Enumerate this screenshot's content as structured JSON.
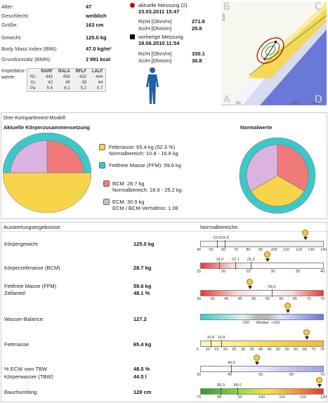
{
  "patient": {
    "alter_label": "Alter:",
    "alter": "47",
    "geschlecht_label": "Geschlecht:",
    "geschlecht": "weiblich",
    "groesse_label": "Größe:",
    "groesse": "163 cm",
    "gewicht_label": "Gewicht:",
    "gewicht": "125.0 kg",
    "bmi_label": "Body Mass Index (BMI):",
    "bmi": "47.0 kg/m²",
    "bmr_label": "Grundumsatz (BMR):",
    "bmr": "1'491 kcal",
    "impedanz_label": "Impedanz-\nwerte:"
  },
  "impedance": {
    "columns": [
      "",
      "RARF",
      "RALA",
      "RFLF",
      "LALF"
    ],
    "rows": [
      [
        "Rz",
        "443",
        "456",
        "432",
        "444"
      ],
      [
        "Xc",
        "42",
        "49",
        "39",
        "44"
      ],
      [
        "Pa",
        "5.4",
        "6.1",
        "5.2",
        "5.7"
      ]
    ]
  },
  "measurements": {
    "current_title": "aktuelle Messung (2)",
    "current_date": "23.03.2011 15:47",
    "current_rz_label": "Rz/H [Ohm/m]",
    "current_rz": "271.8",
    "current_xc_label": "Xc/H [Ohm/m]",
    "current_xc": "25.8",
    "prev_title": "vorherige Messung",
    "prev_date": "18.06.2010 11:54",
    "prev_rz_label": "Rz/H [Ohm/m]",
    "prev_rz": "330.1",
    "prev_xc_label": "Xc/H [Ohm/m]",
    "prev_xc": "36.8",
    "current_color": "#cc0000",
    "prev_color": "#000000"
  },
  "rxc_graph": {
    "quadrants": [
      "B",
      "C",
      "A",
      "D"
    ],
    "ylabel": "Xc/H",
    "xlabel": "Rz/H",
    "x_min_label": "100",
    "x_max_label": "1000"
  },
  "compartment": {
    "section_title": "Drei-Kompartiment-Modell:",
    "current_title": "Aktuelle Körperzusammensetzung",
    "normal_title": "Normalwerte",
    "fett_line1": "Fettmasse: 65.4 kg (52.3 %)",
    "fett_line2": "Normalbereich: 10.8 - 16.8 kg",
    "ffm_line": "Fettfreie Masse (FFM): 59.6 kg",
    "bcm_line1": "BCM: 28.7 kg",
    "bcm_line2": "Normalbereich: 18.9 - 25.2 kg",
    "ecm_line1": "ECM: 30.9 kg",
    "ecm_line2": "ECM / BCM-Verhältnis: 1.08",
    "colors": {
      "fett": "#f7d54a",
      "ffm": "#3cc8c8",
      "bcm": "#f07a7a",
      "ecm": "#dcb2e0"
    }
  },
  "results": {
    "title": "Auswertungsergebnisse:",
    "normal_title": "Normalbereiche:",
    "rows": {
      "koerpergewicht": {
        "label": "Körpergewicht",
        "value": "125.0 kg"
      },
      "bcm": {
        "label": "Körperzellmasse (BCM)",
        "value": "28.7 kg"
      },
      "ffm": {
        "label": "Fettfreie Masse (FFM)",
        "value": "59.6 kg"
      },
      "zellanteil": {
        "label": "Zellanteil",
        "value": "48.1 %"
      },
      "wasser": {
        "label": "Wasser-Balance:",
        "value": "127.2"
      },
      "fett": {
        "label": "Fettmasse",
        "value": "65.4 kg"
      },
      "ecw": {
        "label": "% ECW vom TBW",
        "value": "48.5 %"
      },
      "tbw": {
        "label": "Körperwasser (TBW)",
        "value": "44.5 l"
      },
      "bauch": {
        "label": "Bauchumfang",
        "value": "128 cm"
      }
    }
  },
  "scales": {
    "gewicht": {
      "ticks": [
        "40",
        "50",
        "60",
        "70",
        "80",
        "90",
        "100",
        "110",
        "120",
        "130",
        "140"
      ],
      "marks": [
        "53.6",
        "59.9"
      ],
      "value": 125.0,
      "min": 40,
      "max": 140
    },
    "bcm": {
      "ticks": [
        "15",
        "20",
        "25",
        "30",
        "35",
        "40"
      ],
      "marks": [
        "18.9",
        "22.1",
        "25.2"
      ],
      "value": 28.7,
      "min": 15,
      "max": 40
    },
    "ffm": {
      "ticks": [
        "30",
        "35",
        "40",
        "45",
        "50",
        "55",
        "60",
        "65",
        "70",
        "75"
      ],
      "marks": [
        "56.0"
      ],
      "value": 48.1,
      "min": 30,
      "max": 75
    },
    "wasser": {
      "ticks": [
        "-100",
        "Median",
        "+100"
      ],
      "value": 127.2,
      "min": -300,
      "max": 300
    },
    "fett": {
      "ticks": [
        "5",
        "10",
        "15",
        "20",
        "25",
        "30",
        "35",
        "40",
        "45",
        "50",
        "55",
        "60",
        "65",
        "70",
        "75"
      ],
      "marks": [
        "10.8",
        "16.8"
      ],
      "value": 65.4,
      "min": 5,
      "max": 75
    },
    "ecw": {
      "ticks": [
        "30",
        "40",
        "50",
        "60",
        "70"
      ],
      "marks": [
        "40.0"
      ],
      "value": 48.5,
      "min": 30,
      "max": 70
    },
    "bauch": {
      "ticks": [
        "70",
        "80",
        "90",
        "100",
        "110",
        "120",
        "130"
      ],
      "marks": [
        "80.0",
        "88.0"
      ],
      "value": 128,
      "min": 70,
      "max": 130
    }
  }
}
